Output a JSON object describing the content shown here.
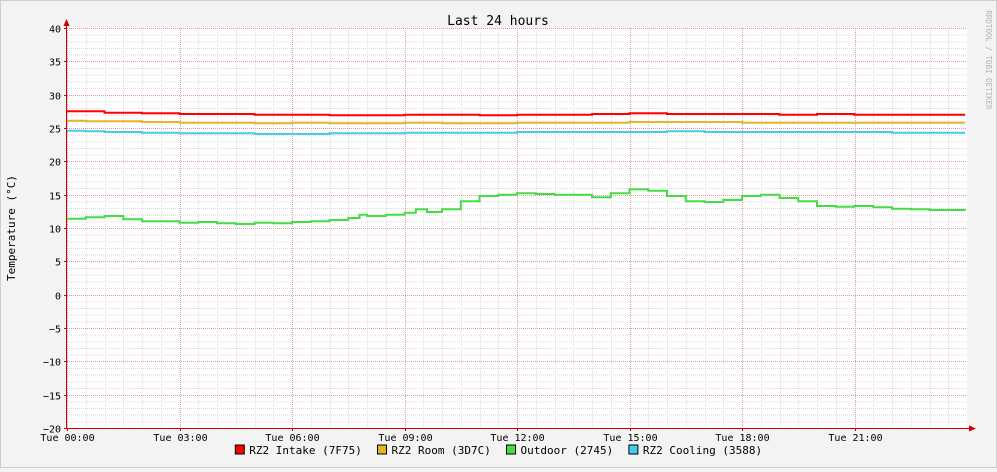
{
  "chart_data": {
    "type": "line",
    "title": "Last 24 hours",
    "ylabel": "Temperature (°C)",
    "xlabel": "",
    "watermark": "RRDTOOL / TOBI OETIKER",
    "ylim": [
      -20,
      40
    ],
    "yticks": [
      40,
      35,
      30,
      25,
      20,
      15,
      10,
      5,
      0,
      -5,
      -10,
      -15,
      -20
    ],
    "xlim_hours": [
      0,
      24
    ],
    "x_ticks": [
      {
        "hour": 0,
        "label": "Tue 00:00"
      },
      {
        "hour": 3,
        "label": "Tue 03:00"
      },
      {
        "hour": 6,
        "label": "Tue 06:00"
      },
      {
        "hour": 9,
        "label": "Tue 09:00"
      },
      {
        "hour": 12,
        "label": "Tue 12:00"
      },
      {
        "hour": 15,
        "label": "Tue 15:00"
      },
      {
        "hour": 18,
        "label": "Tue 18:00"
      },
      {
        "hour": 21,
        "label": "Tue 21:00"
      }
    ],
    "grid": true,
    "legend_position": "bottom",
    "series": [
      {
        "name": "RZ2 Intake (7F75)",
        "color": "#ff0000",
        "x": [
          0,
          0.5,
          1,
          1.5,
          2,
          3,
          4,
          5,
          6,
          7,
          8,
          9,
          10,
          11,
          12,
          13,
          14,
          15,
          16,
          17,
          18,
          19,
          20,
          21,
          22,
          23,
          23.95
        ],
        "y": [
          27.5,
          27.5,
          27.3,
          27.3,
          27.2,
          27.1,
          27.1,
          27.0,
          27.0,
          26.9,
          26.9,
          27.0,
          27.0,
          26.9,
          27.0,
          27.0,
          27.1,
          27.2,
          27.1,
          27.1,
          27.1,
          27.0,
          27.1,
          27.0,
          27.0,
          27.0,
          27.0
        ]
      },
      {
        "name": "RZ2 Room (3D7C)",
        "color": "#e6b428",
        "x": [
          0,
          0.5,
          1,
          2,
          3,
          4,
          5,
          6,
          7,
          8,
          9,
          10,
          11,
          12,
          13,
          14,
          15,
          16,
          17,
          18,
          19,
          20,
          21,
          22,
          23,
          23.95
        ],
        "y": [
          26.1,
          26.0,
          26.0,
          25.9,
          25.8,
          25.8,
          25.7,
          25.8,
          25.7,
          25.7,
          25.8,
          25.7,
          25.7,
          25.8,
          25.8,
          25.8,
          25.9,
          25.9,
          25.9,
          25.8,
          25.8,
          25.8,
          25.8,
          25.8,
          25.8,
          25.8
        ]
      },
      {
        "name": "Outdoor (2745)",
        "color": "#44dd44",
        "x": [
          0,
          0.5,
          1,
          1.5,
          2,
          2.5,
          3,
          3.5,
          4,
          4.5,
          5,
          5.5,
          6,
          6.5,
          7,
          7.5,
          7.8,
          8,
          8.5,
          9,
          9.3,
          9.6,
          10,
          10.5,
          11,
          11.5,
          12,
          12.5,
          13,
          13.5,
          14,
          14.5,
          15,
          15.5,
          16,
          16.5,
          17,
          17.5,
          18,
          18.5,
          19,
          19.5,
          20,
          20.5,
          21,
          21.5,
          22,
          22.5,
          23,
          23.95
        ],
        "y": [
          11.4,
          11.6,
          11.8,
          11.3,
          11.0,
          11.0,
          10.8,
          10.9,
          10.7,
          10.6,
          10.8,
          10.7,
          10.9,
          11.0,
          11.2,
          11.5,
          12.0,
          11.8,
          12.0,
          12.3,
          12.8,
          12.4,
          12.8,
          14.0,
          14.8,
          15.0,
          15.2,
          15.1,
          15.0,
          15.0,
          14.6,
          15.2,
          15.8,
          15.6,
          14.8,
          14.0,
          13.9,
          14.2,
          14.8,
          15.0,
          14.5,
          14.0,
          13.3,
          13.2,
          13.3,
          13.1,
          12.9,
          12.8,
          12.7,
          12.6
        ]
      },
      {
        "name": "RZ2 Cooling (3588)",
        "color": "#44ccee",
        "x": [
          0,
          0.5,
          1,
          2,
          3,
          4,
          5,
          6,
          7,
          8,
          9,
          10,
          11,
          12,
          13,
          14,
          15,
          16,
          17,
          18,
          19,
          20,
          21,
          22,
          23,
          23.95
        ],
        "y": [
          24.6,
          24.5,
          24.4,
          24.3,
          24.2,
          24.2,
          24.1,
          24.1,
          24.2,
          24.2,
          24.3,
          24.3,
          24.3,
          24.4,
          24.4,
          24.4,
          24.4,
          24.5,
          24.4,
          24.4,
          24.4,
          24.4,
          24.4,
          24.3,
          24.3,
          24.3
        ]
      }
    ]
  }
}
